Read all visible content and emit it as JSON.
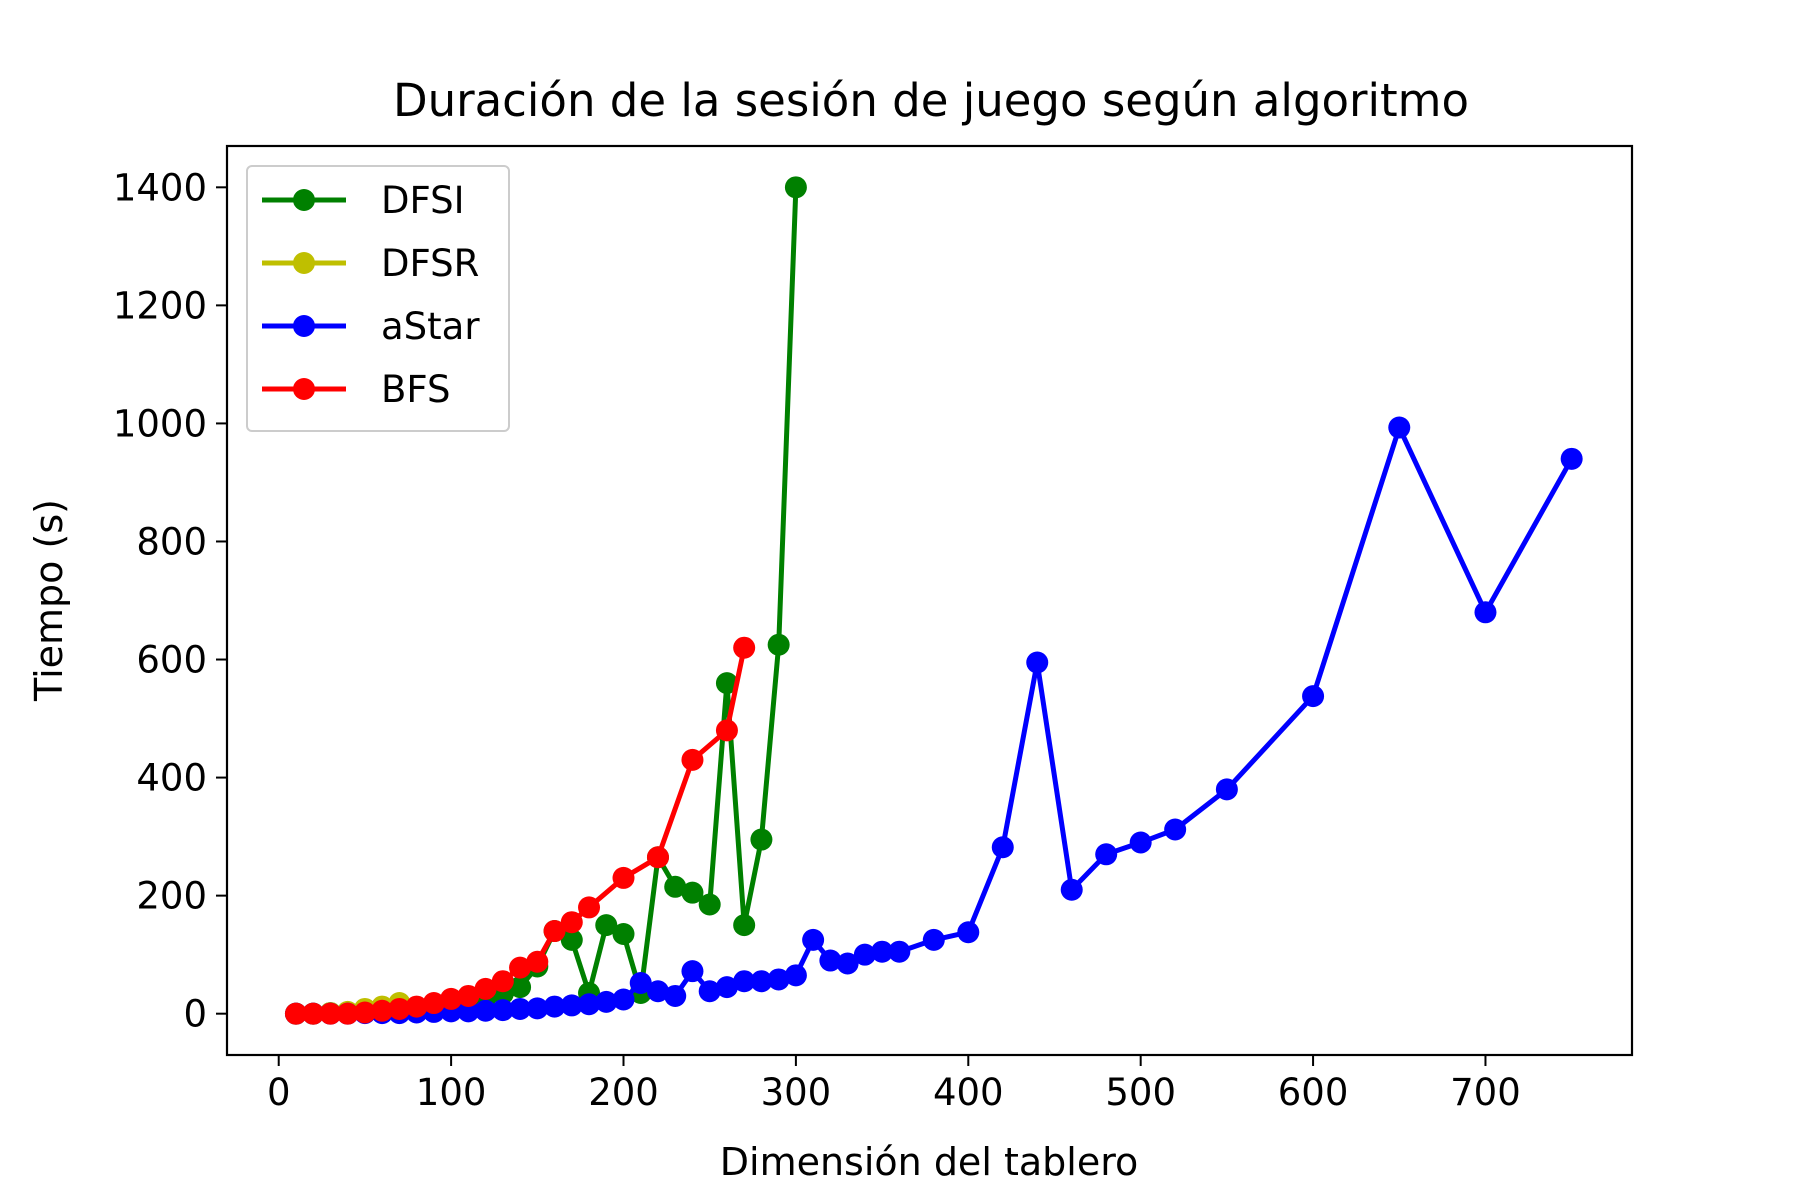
{
  "chart_data": {
    "type": "line",
    "title": "Duración de la sesión de juego según algoritmo",
    "xlabel": "Dimensión del tablero",
    "ylabel": "Tiempo (s)",
    "xlim": [
      -30,
      785
    ],
    "ylim": [
      -70,
      1470
    ],
    "xticks": [
      0,
      100,
      200,
      300,
      400,
      500,
      600,
      700
    ],
    "yticks": [
      0,
      200,
      400,
      600,
      800,
      1000,
      1200,
      1400
    ],
    "legend_position": "upper-left",
    "grid": false,
    "series": [
      {
        "name": "DFSI",
        "color": "#008000",
        "x": [
          10,
          20,
          30,
          40,
          50,
          60,
          70,
          80,
          90,
          100,
          110,
          120,
          130,
          140,
          150,
          160,
          170,
          180,
          190,
          200,
          210,
          220,
          230,
          240,
          250,
          260,
          270,
          280,
          290,
          300
        ],
        "y": [
          0,
          0,
          1,
          2,
          3,
          4,
          6,
          8,
          12,
          18,
          22,
          28,
          34,
          45,
          80,
          140,
          125,
          35,
          150,
          135,
          35,
          265,
          215,
          205,
          185,
          560,
          150,
          295,
          625,
          1400
        ]
      },
      {
        "name": "DFSR",
        "color": "#bfbf00",
        "x": [
          10,
          20,
          30,
          40,
          50,
          60,
          70
        ],
        "y": [
          0,
          0,
          1,
          3,
          8,
          12,
          18
        ]
      },
      {
        "name": "aStar",
        "color": "#0000ff",
        "x": [
          10,
          20,
          30,
          40,
          50,
          60,
          70,
          80,
          90,
          100,
          110,
          120,
          130,
          140,
          150,
          160,
          170,
          180,
          190,
          200,
          210,
          220,
          230,
          240,
          250,
          260,
          270,
          280,
          290,
          300,
          310,
          320,
          330,
          340,
          350,
          360,
          380,
          400,
          420,
          440,
          460,
          480,
          500,
          520,
          550,
          600,
          650,
          700,
          750
        ],
        "y": [
          0,
          0,
          0,
          0,
          1,
          1,
          1,
          2,
          3,
          4,
          4,
          5,
          6,
          8,
          9,
          12,
          14,
          16,
          20,
          24,
          52,
          38,
          30,
          72,
          38,
          45,
          55,
          55,
          58,
          65,
          125,
          90,
          85,
          100,
          105,
          105,
          125,
          138,
          282,
          595,
          210,
          270,
          290,
          312,
          380,
          538,
          993,
          680,
          940
        ]
      },
      {
        "name": "BFS",
        "color": "#ff0000",
        "x": [
          10,
          20,
          30,
          40,
          50,
          60,
          70,
          80,
          90,
          100,
          110,
          120,
          130,
          140,
          150,
          160,
          170,
          180,
          200,
          220,
          240,
          260,
          270
        ],
        "y": [
          0,
          0,
          0,
          0,
          2,
          5,
          8,
          12,
          18,
          25,
          30,
          42,
          55,
          78,
          88,
          140,
          155,
          180,
          230,
          265,
          430,
          480,
          620
        ]
      }
    ]
  }
}
